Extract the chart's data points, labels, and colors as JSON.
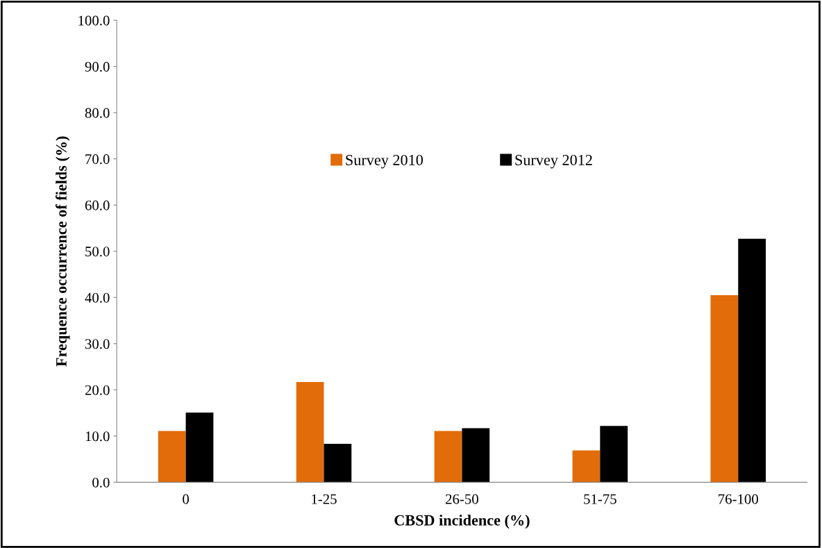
{
  "chart_data": {
    "type": "bar",
    "xlabel": "CBSD incidence (%)",
    "ylabel": "Frequence occurrence of fields (%)",
    "categories": [
      "0",
      "1-25",
      "26-50",
      "51-75",
      "76-100"
    ],
    "series": [
      {
        "name": "Survey 2010",
        "color": "#e36c0a",
        "values": [
          11.1,
          21.7,
          11.1,
          6.9,
          40.5
        ]
      },
      {
        "name": "Survey 2012",
        "color": "#000000",
        "values": [
          15.1,
          8.3,
          11.7,
          12.2,
          52.7
        ]
      }
    ],
    "ylim": [
      0,
      100
    ],
    "yticks": [
      {
        "value": 0,
        "label": "0.0"
      },
      {
        "value": 10,
        "label": "10.0"
      },
      {
        "value": 20,
        "label": "20.0"
      },
      {
        "value": 30,
        "label": "30.0"
      },
      {
        "value": 40,
        "label": "40.0"
      },
      {
        "value": 50,
        "label": "50.0"
      },
      {
        "value": 60,
        "label": "60.0"
      },
      {
        "value": 70,
        "label": "70.0"
      },
      {
        "value": 80,
        "label": "80.0"
      },
      {
        "value": 90,
        "label": "90.0"
      },
      {
        "value": 100,
        "label": "100.0"
      }
    ],
    "grid": false,
    "legend": "top"
  }
}
